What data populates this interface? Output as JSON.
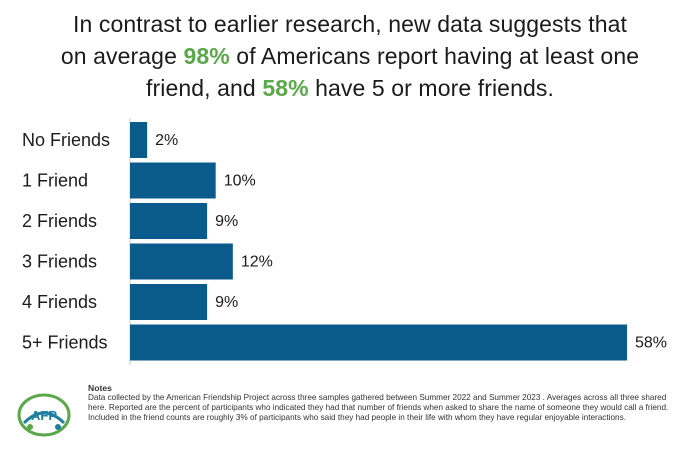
{
  "headline": {
    "line1": "In contrast to earlier research, new data suggests that",
    "line2_pre": "on average ",
    "line2_highlight": "98%",
    "line2_post": " of Americans report having at least one",
    "line3_pre": "friend, and ",
    "line3_highlight": "58%",
    "line3_post": " have 5 or more friends."
  },
  "chart_data": {
    "type": "bar",
    "orientation": "horizontal",
    "categories": [
      "No Friends",
      "1 Friend",
      "2 Friends",
      "3 Friends",
      "4 Friends",
      "5+ Friends"
    ],
    "values": [
      2,
      10,
      9,
      12,
      9,
      58
    ],
    "value_labels": [
      "2%",
      "10%",
      "9%",
      "12%",
      "9%",
      "58%"
    ],
    "xlim": [
      0,
      58
    ],
    "grid": false,
    "legend": "none"
  },
  "notes": {
    "title": "Notes",
    "text": "Data collected by the American Friendship Project across three samples gathered between Summer 2022 and Summer 2023 . Averages across all three shared here. Reported are the percent of participants who indicated they had that number of friends when asked to share the name of someone they would call a friend. Included in the friend counts are roughly 3% of participants who said they had people in their life with whom they have regular enjoyable interactions."
  },
  "logo": {
    "text": "AFP"
  },
  "colors": {
    "bar": "#0a5a8c",
    "highlight": "#5aa84a",
    "logo_green": "#5aa84a",
    "logo_teal": "#1f7fa0"
  }
}
